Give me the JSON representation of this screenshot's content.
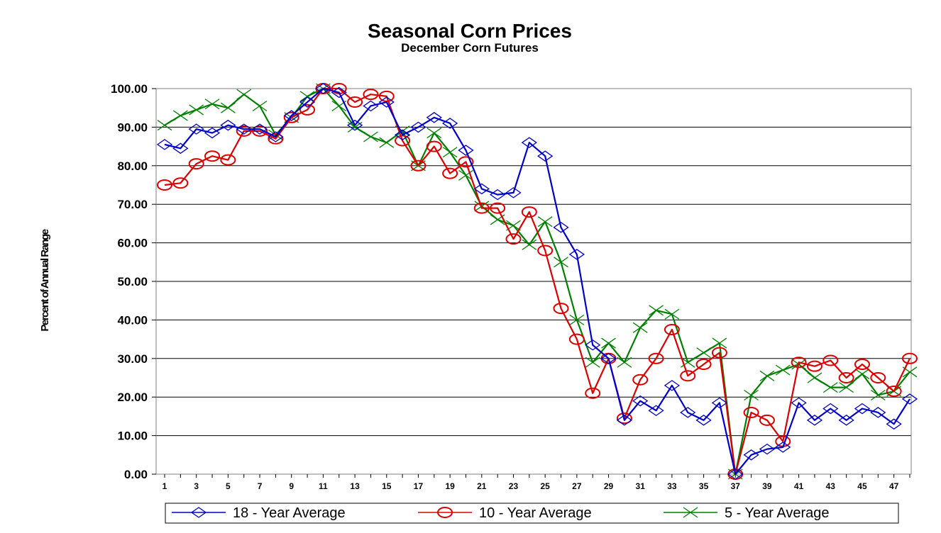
{
  "chart_data": {
    "type": "line",
    "title": "Seasonal Corn Prices",
    "subtitle": "December Corn Futures",
    "xlabel": "",
    "ylabel": "Percent of Annual Range",
    "ylim": [
      0,
      100
    ],
    "yticks": [
      "0.00",
      "10.00",
      "20.00",
      "30.00",
      "40.00",
      "50.00",
      "60.00",
      "70.00",
      "80.00",
      "90.00",
      "100.00"
    ],
    "xticks": [
      "1",
      "3",
      "5",
      "7",
      "9",
      "11",
      "13",
      "15",
      "17",
      "19",
      "21",
      "23",
      "25",
      "27",
      "29",
      "31",
      "33",
      "35",
      "37",
      "39",
      "41",
      "43",
      "45",
      "47"
    ],
    "x": [
      1,
      2,
      3,
      4,
      5,
      6,
      7,
      8,
      9,
      10,
      11,
      12,
      13,
      14,
      15,
      16,
      17,
      18,
      19,
      20,
      21,
      22,
      23,
      24,
      25,
      26,
      27,
      28,
      29,
      30,
      31,
      32,
      33,
      34,
      35,
      36,
      37,
      38,
      39,
      40,
      41,
      42,
      43,
      44,
      45,
      46,
      47,
      48
    ],
    "grid": true,
    "legend_position": "bottom",
    "series": [
      {
        "name": "18 - Year Average",
        "color": "#0000cc",
        "marker": "diamond",
        "values": [
          85.5,
          84.5,
          89.5,
          88.5,
          90.5,
          89.5,
          89.5,
          87.5,
          93,
          96.5,
          100,
          99,
          90.5,
          95.5,
          96.5,
          88,
          90,
          92.5,
          91,
          84,
          74,
          72.5,
          73,
          86,
          82.5,
          64,
          57,
          33.5,
          30,
          14,
          19,
          16.5,
          23,
          16,
          14,
          18.5,
          0,
          5,
          6.5,
          7,
          18.5,
          14,
          17,
          14,
          17,
          16,
          13,
          19.5
        ]
      },
      {
        "name": "10 - Year Average",
        "color": "#dd0000",
        "marker": "circle",
        "values": [
          75,
          75.5,
          80.5,
          82.5,
          81.5,
          89,
          89,
          87,
          92.5,
          94.5,
          100,
          100,
          96.5,
          98.5,
          98,
          86.5,
          80,
          85,
          78,
          81,
          69,
          69,
          61,
          68,
          58,
          43,
          35,
          21,
          30,
          14.5,
          24.5,
          30,
          37.5,
          25.5,
          28.5,
          31.5,
          0,
          16,
          14,
          8.5,
          29,
          28,
          29.5,
          25,
          28.5,
          25,
          21.5,
          30
        ]
      },
      {
        "name": "5 - Year Average",
        "color": "#008000",
        "marker": "x",
        "values": [
          90.5,
          93,
          94.5,
          96,
          95,
          98.5,
          95.5,
          88,
          92.5,
          98,
          100,
          95.5,
          90,
          87.5,
          86,
          89,
          80,
          88.5,
          83.5,
          77.5,
          69.5,
          66,
          64.5,
          59.5,
          65.5,
          55,
          40,
          29,
          34,
          29,
          38,
          42.5,
          41.5,
          29,
          31.5,
          34,
          0,
          20.5,
          25.5,
          27,
          28.5,
          25,
          22.5,
          22.5,
          26,
          20.5,
          21.5,
          26.5
        ]
      }
    ]
  }
}
